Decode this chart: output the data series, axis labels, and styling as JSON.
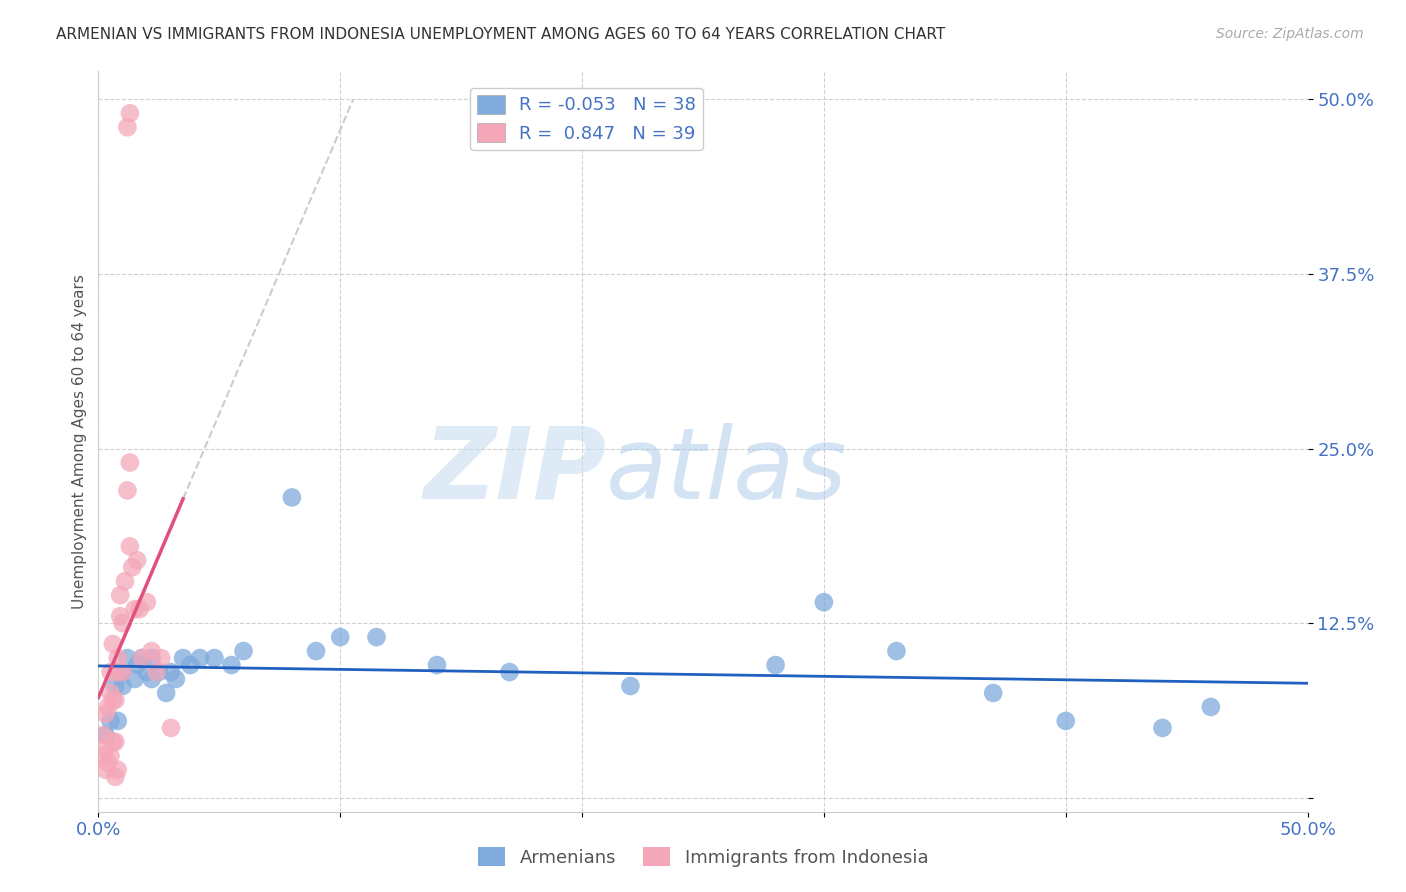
{
  "title": "ARMENIAN VS IMMIGRANTS FROM INDONESIA UNEMPLOYMENT AMONG AGES 60 TO 64 YEARS CORRELATION CHART",
  "source": "Source: ZipAtlas.com",
  "ylabel": "Unemployment Among Ages 60 to 64 years",
  "xlim": [
    0.0,
    0.5
  ],
  "ylim": [
    -0.01,
    0.52
  ],
  "xticks": [
    0.0,
    0.1,
    0.2,
    0.3,
    0.4,
    0.5
  ],
  "yticks": [
    0.0,
    0.125,
    0.25,
    0.375,
    0.5
  ],
  "blue_R": "-0.053",
  "blue_N": "38",
  "pink_R": "0.847",
  "pink_N": "39",
  "blue_color": "#7faadc",
  "pink_color": "#f4a7b9",
  "blue_line_color": "#2060c0",
  "pink_line_color": "#e0507a",
  "watermark_zip": "ZIP",
  "watermark_atlas": "atlas",
  "legend_label_blue": "Armenians",
  "legend_label_pink": "Immigrants from Indonesia",
  "blue_scatter_x": [
    0.003,
    0.005,
    0.007,
    0.008,
    0.008,
    0.01,
    0.01,
    0.012,
    0.015,
    0.016,
    0.018,
    0.02,
    0.022,
    0.022,
    0.025,
    0.028,
    0.03,
    0.032,
    0.035,
    0.038,
    0.042,
    0.048,
    0.055,
    0.06,
    0.08,
    0.09,
    0.1,
    0.115,
    0.14,
    0.17,
    0.22,
    0.28,
    0.3,
    0.33,
    0.37,
    0.4,
    0.44,
    0.46
  ],
  "blue_scatter_y": [
    0.045,
    0.055,
    0.08,
    0.055,
    0.09,
    0.08,
    0.09,
    0.1,
    0.085,
    0.095,
    0.1,
    0.09,
    0.085,
    0.1,
    0.09,
    0.075,
    0.09,
    0.085,
    0.1,
    0.095,
    0.1,
    0.1,
    0.095,
    0.105,
    0.215,
    0.105,
    0.115,
    0.115,
    0.095,
    0.09,
    0.08,
    0.095,
    0.14,
    0.105,
    0.075,
    0.055,
    0.05,
    0.065
  ],
  "pink_scatter_x": [
    0.002,
    0.002,
    0.003,
    0.003,
    0.003,
    0.004,
    0.004,
    0.005,
    0.005,
    0.005,
    0.006,
    0.006,
    0.006,
    0.007,
    0.007,
    0.007,
    0.008,
    0.008,
    0.008,
    0.009,
    0.009,
    0.01,
    0.01,
    0.011,
    0.012,
    0.013,
    0.013,
    0.014,
    0.015,
    0.016,
    0.017,
    0.018,
    0.02,
    0.022,
    0.024,
    0.026,
    0.03,
    0.012,
    0.013
  ],
  "pink_scatter_y": [
    0.03,
    0.045,
    0.02,
    0.035,
    0.06,
    0.025,
    0.065,
    0.03,
    0.075,
    0.09,
    0.04,
    0.07,
    0.11,
    0.015,
    0.04,
    0.07,
    0.02,
    0.09,
    0.1,
    0.13,
    0.145,
    0.09,
    0.125,
    0.155,
    0.22,
    0.24,
    0.18,
    0.165,
    0.135,
    0.17,
    0.135,
    0.1,
    0.14,
    0.105,
    0.09,
    0.1,
    0.05,
    0.48,
    0.49
  ]
}
